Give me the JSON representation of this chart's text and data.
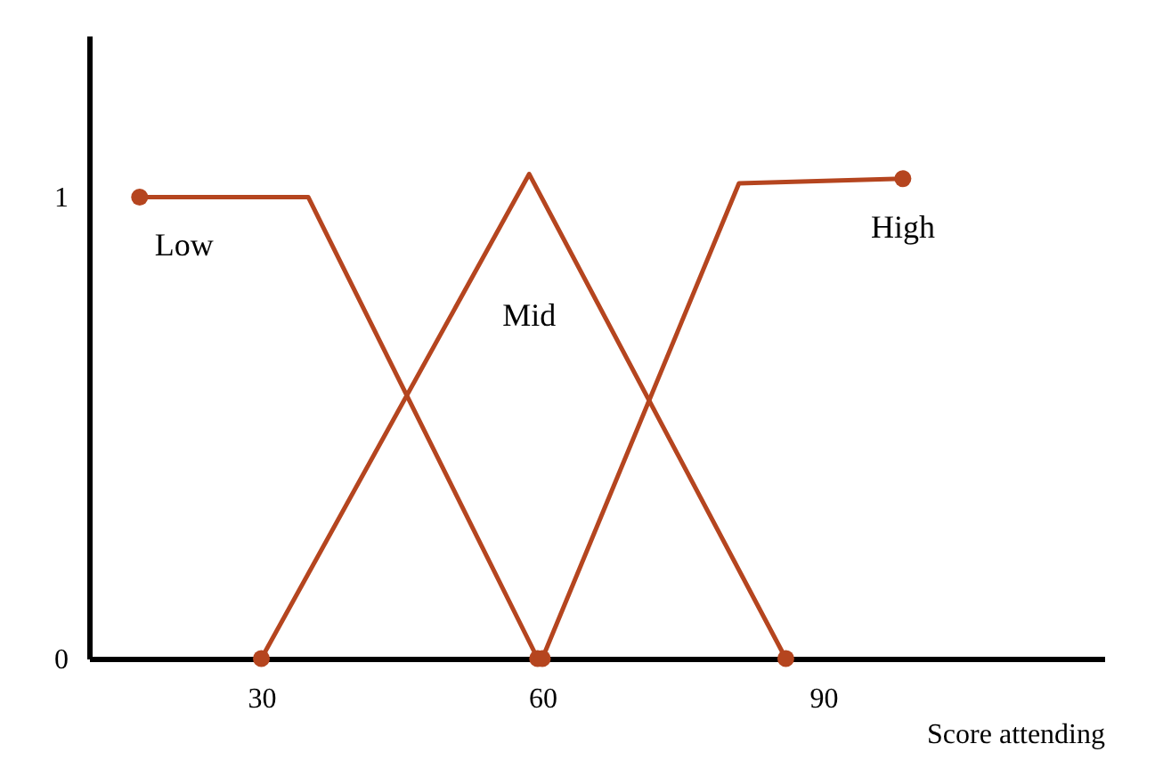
{
  "chart_data": {
    "type": "line",
    "xlabel": "Score attending",
    "xlim": [
      11.6,
      120
    ],
    "ylim": [
      0,
      1.35
    ],
    "xticks": [
      30,
      60,
      90
    ],
    "yticks": [
      0,
      1
    ],
    "grid": false,
    "marker": "circle",
    "line_style": "solid",
    "series": [
      {
        "name": "Low",
        "color": "#b5451f",
        "x": [
          17,
          35,
          59.5
        ],
        "values": [
          1,
          1,
          0
        ]
      },
      {
        "name": "Mid",
        "color": "#b5451f",
        "x": [
          30,
          58.6,
          86
        ],
        "values": [
          0,
          1.05,
          0
        ]
      },
      {
        "name": "High",
        "color": "#b5451f",
        "x": [
          60,
          81,
          98.5
        ],
        "values": [
          0,
          1.03,
          1.04
        ]
      }
    ]
  }
}
